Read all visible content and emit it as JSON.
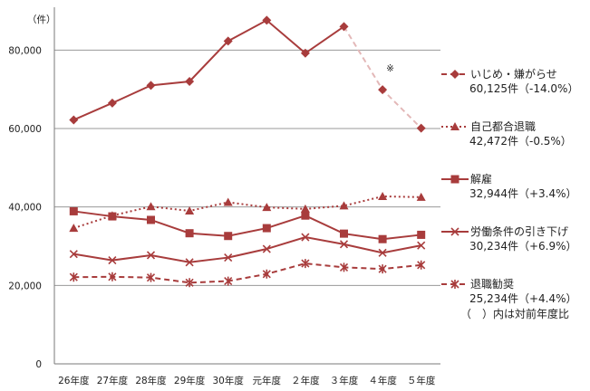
{
  "chart_data": {
    "type": "line",
    "unit_label": "（件）",
    "categories": [
      "26年度",
      "27年度",
      "28年度",
      "29年度",
      "30年度",
      "元年度",
      "２年度",
      "３年度",
      "４年度",
      "５年度"
    ],
    "y_ticks": [
      "0",
      "20,000",
      "40,000",
      "60,000",
      "80,000"
    ],
    "ylim": [
      0,
      90000
    ],
    "grid": true,
    "legend_position": "right",
    "note_mark": "※",
    "note_mark_category": "４年度",
    "series": [
      {
        "name": "いじめ・嫌がらせ",
        "legend_value": "60,125件（-14.0%）",
        "marker": "diamond",
        "line_style": "dashed",
        "color": "#a83c3c",
        "values": [
          62200,
          66500,
          71000,
          72000,
          82300,
          87600,
          79200,
          86000,
          69900,
          60100
        ],
        "faded_from_index": 7,
        "faded_color": "#e3b8b8"
      },
      {
        "name": "自己都合退職",
        "legend_value": "42,472件（-0.5%）",
        "marker": "triangle",
        "line_style": "dotted",
        "color": "#a83c3c",
        "values": [
          34600,
          37800,
          40100,
          39000,
          41200,
          39900,
          39500,
          40300,
          42700,
          42500
        ]
      },
      {
        "name": "解雇",
        "legend_value": "32,944件（+3.4%）",
        "marker": "square",
        "line_style": "solid",
        "color": "#a83c3c",
        "values": [
          38900,
          37600,
          36700,
          33300,
          32600,
          34600,
          37800,
          33200,
          31800,
          32900
        ]
      },
      {
        "name": "労働条件の引き下げ",
        "legend_value": "30,234件（+6.9%）",
        "marker": "x",
        "line_style": "solid",
        "color": "#a83c3c",
        "values": [
          28000,
          26400,
          27700,
          25900,
          27100,
          29300,
          32300,
          30500,
          28300,
          30200
        ]
      },
      {
        "name": "退職勧奨",
        "legend_value": "25,234件（+4.4%）",
        "marker": "asterisk",
        "line_style": "dashed",
        "color": "#a83c3c",
        "values": [
          22100,
          22200,
          22000,
          20700,
          21100,
          22900,
          25600,
          24600,
          24200,
          25200
        ]
      }
    ],
    "legend_note": "（　）内は対前年度比"
  }
}
